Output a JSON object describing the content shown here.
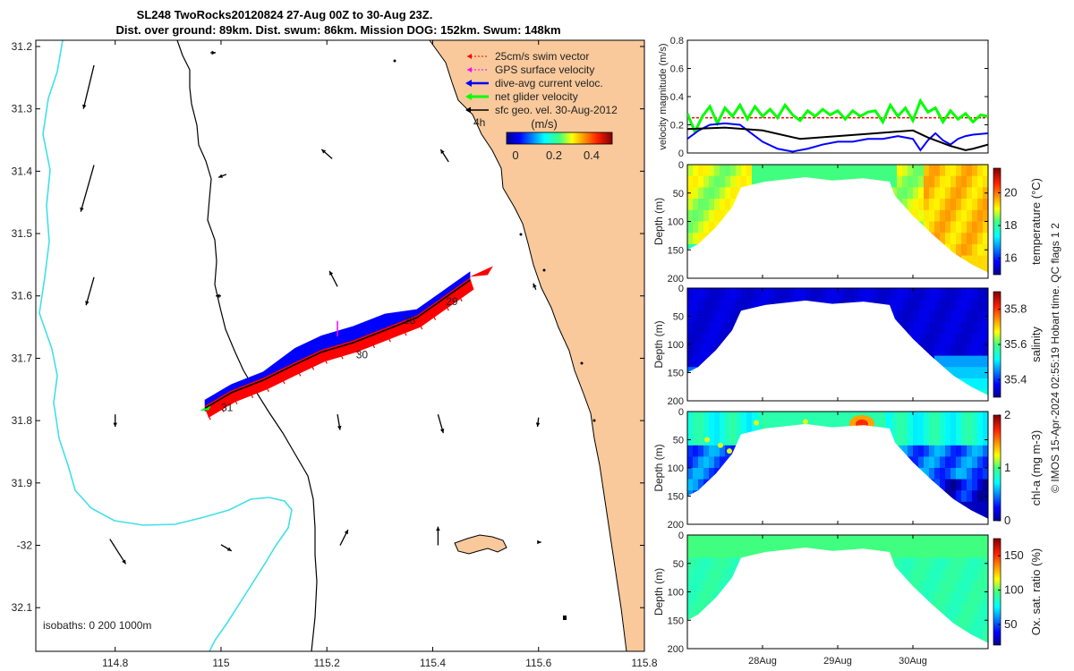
{
  "title": {
    "line1": "SL248 TwoRocks20120824 27-Aug 00Z to 30-Aug 23Z.",
    "line2": "Dist. over ground: 89km. Dist. swum: 86km. Mission DOG: 152km. Swum: 148km"
  },
  "credit": "© IMOS 15-Apr-2024 02:55:19 Hobart time. QC flags 1  2",
  "colors": {
    "land": "#f9c99b",
    "isobath_shallow": "#40e0e8",
    "isobath_deep": "#000000",
    "swim": "#ff0000",
    "gps": "#ff00ff",
    "dive_avg": "#0000ff",
    "net": "#00ff00",
    "geo": "#000000"
  },
  "chart_data": [
    {
      "type": "map",
      "id": "track-map",
      "xlim": [
        114.65,
        115.8
      ],
      "ylim": [
        -32.17,
        -31.19
      ],
      "x_ticks": [
        114.8,
        115,
        115.2,
        115.4,
        115.6,
        115.8
      ],
      "x_tick_labels": [
        "114.8",
        "115",
        "115.2",
        "115.4",
        "115.6",
        "115.8"
      ],
      "y_ticks": [
        -31.2,
        -31.3,
        -31.4,
        -31.5,
        -31.6,
        -31.7,
        -31.8,
        -31.9,
        -32,
        -32.1
      ],
      "y_tick_labels": [
        "31.2",
        "31.3",
        "31.4",
        "31.5",
        "31.6",
        "31.7",
        "31.8",
        "31.9",
        "-32",
        "32.1"
      ],
      "legend": [
        {
          "label": "25cm/s swim vector",
          "color": "#ff0000"
        },
        {
          "label": "GPS surface velocity",
          "color": "#ff00ff"
        },
        {
          "label": "dive-avg current veloc.",
          "color": "#0000ff"
        },
        {
          "label": "net glider velocity",
          "color": "#00ff00"
        },
        {
          "label": "sfc geo. vel. 30-Aug-2012",
          "color": "#000000"
        }
      ],
      "legend_placement": "top-right",
      "scale_label": "4h",
      "colorbar": {
        "label": "(m/s)",
        "ticks": [
          0,
          0.2,
          0.4
        ],
        "tick_labels": [
          "0",
          "0.2",
          "0.4"
        ],
        "range": [
          -0.03,
          0.5
        ]
      },
      "isobath_text": "isobaths: 0   200  1000m",
      "track": [
        {
          "lon": 114.97,
          "lat": -31.78
        },
        {
          "lon": 115.02,
          "lat": -31.755
        },
        {
          "lon": 115.08,
          "lat": -31.735
        },
        {
          "lon": 115.14,
          "lat": -31.71
        },
        {
          "lon": 115.19,
          "lat": -31.69
        },
        {
          "lon": 115.25,
          "lat": -31.675
        },
        {
          "lon": 115.31,
          "lat": -31.655
        },
        {
          "lon": 115.37,
          "lat": -31.635
        },
        {
          "lon": 115.42,
          "lat": -31.605
        },
        {
          "lon": 115.47,
          "lat": -31.575
        }
      ],
      "day_labels": [
        {
          "text": "31",
          "lon": 115.0,
          "lat": -31.785
        },
        {
          "text": "30",
          "lon": 115.255,
          "lat": -31.7
        },
        {
          "text": "28",
          "lon": 115.345,
          "lat": -31.645
        },
        {
          "text": "29",
          "lon": 115.425,
          "lat": -31.615
        }
      ],
      "geo_vectors": [
        {
          "lon": 114.76,
          "lat": -31.23,
          "dlon": -0.02,
          "dlat": -0.07
        },
        {
          "lon": 114.98,
          "lat": -31.21,
          "dlon": 0.01,
          "dlat": 0.0
        },
        {
          "lon": 114.76,
          "lat": -31.39,
          "dlon": -0.025,
          "dlat": -0.075
        },
        {
          "lon": 115.01,
          "lat": -31.405,
          "dlon": -0.015,
          "dlat": -0.005
        },
        {
          "lon": 115.21,
          "lat": -31.38,
          "dlon": -0.02,
          "dlat": 0.015
        },
        {
          "lon": 115.43,
          "lat": -31.385,
          "dlon": -0.015,
          "dlat": 0.02
        },
        {
          "lon": 114.76,
          "lat": -31.57,
          "dlon": -0.015,
          "dlat": -0.045
        },
        {
          "lon": 115.0,
          "lat": -31.6,
          "dlon": -0.01,
          "dlat": 0.0
        },
        {
          "lon": 115.22,
          "lat": -31.585,
          "dlon": -0.015,
          "dlat": 0.025
        },
        {
          "lon": 115.595,
          "lat": -31.59,
          "dlon": -0.005,
          "dlat": 0.01
        },
        {
          "lon": 114.8,
          "lat": -31.79,
          "dlon": 0.0,
          "dlat": -0.02
        },
        {
          "lon": 115.22,
          "lat": -31.79,
          "dlon": 0.005,
          "dlat": -0.025
        },
        {
          "lon": 115.41,
          "lat": -31.79,
          "dlon": 0.01,
          "dlat": -0.03
        },
        {
          "lon": 115.6,
          "lat": -31.795,
          "dlon": -0.002,
          "dlat": -0.015
        },
        {
          "lon": 114.79,
          "lat": -31.99,
          "dlon": 0.03,
          "dlat": -0.04
        },
        {
          "lon": 115.0,
          "lat": -31.999,
          "dlon": 0.02,
          "dlat": -0.01
        },
        {
          "lon": 115.225,
          "lat": -32.0,
          "dlon": 0.015,
          "dlat": 0.025
        },
        {
          "lon": 115.41,
          "lat": -32.0,
          "dlon": 0.0,
          "dlat": 0.03
        },
        {
          "lon": 115.6,
          "lat": -31.995,
          "dlon": 0.005,
          "dlat": 0.0
        }
      ]
    },
    {
      "type": "line",
      "id": "velocity",
      "ylabel": "velocity magnitude (m/s)",
      "xlim": [
        0,
        4
      ],
      "ylim": [
        0,
        0.8
      ],
      "y_ticks": [
        0,
        0.2,
        0.4,
        0.6,
        0.8
      ],
      "y_tick_labels": [
        "0",
        "0.2",
        "0.4",
        "0.6",
        "0.8"
      ],
      "series": [
        {
          "name": "swim",
          "color": "#ff0000",
          "style": "dashed",
          "x": [
            0,
            4
          ],
          "y": [
            0.25,
            0.25
          ]
        },
        {
          "name": "net glider velocity",
          "color": "#00ff00",
          "x": [
            0,
            0.1,
            0.2,
            0.3,
            0.4,
            0.5,
            0.6,
            0.7,
            0.8,
            0.9,
            1.0,
            1.1,
            1.2,
            1.3,
            1.4,
            1.5,
            1.6,
            1.7,
            1.8,
            1.9,
            2.0,
            2.1,
            2.2,
            2.3,
            2.4,
            2.5,
            2.6,
            2.7,
            2.8,
            2.9,
            3.0,
            3.1,
            3.2,
            3.3,
            3.4,
            3.5,
            3.6,
            3.7,
            3.8,
            3.9,
            4.0
          ],
          "y": [
            0.28,
            0.15,
            0.26,
            0.33,
            0.21,
            0.32,
            0.26,
            0.34,
            0.24,
            0.33,
            0.26,
            0.31,
            0.25,
            0.34,
            0.27,
            0.23,
            0.3,
            0.26,
            0.31,
            0.27,
            0.3,
            0.24,
            0.3,
            0.26,
            0.29,
            0.3,
            0.22,
            0.34,
            0.26,
            0.32,
            0.23,
            0.37,
            0.29,
            0.32,
            0.22,
            0.3,
            0.24,
            0.28,
            0.22,
            0.27,
            0.26
          ]
        },
        {
          "name": "dive-avg current",
          "color": "#0000ff",
          "x": [
            0,
            0.15,
            0.3,
            0.5,
            0.7,
            0.85,
            1.0,
            1.2,
            1.4,
            1.6,
            1.8,
            2.0,
            2.2,
            2.4,
            2.6,
            2.8,
            3.0,
            3.1,
            3.2,
            3.3,
            3.4,
            3.5,
            3.6,
            3.7,
            3.8,
            4.0
          ],
          "y": [
            0.1,
            0.16,
            0.2,
            0.21,
            0.2,
            0.14,
            0.08,
            0.03,
            0.01,
            0.03,
            0.06,
            0.08,
            0.08,
            0.1,
            0.1,
            0.12,
            0.1,
            0.02,
            0.09,
            0.14,
            0.09,
            0.06,
            0.1,
            0.12,
            0.13,
            0.14
          ]
        },
        {
          "name": "sfc geo. vel.",
          "color": "#000000",
          "x": [
            0,
            0.5,
            1.0,
            1.5,
            2.0,
            2.5,
            3.0,
            3.2,
            3.5,
            3.7,
            3.8,
            4.0
          ],
          "y": [
            0.17,
            0.18,
            0.16,
            0.1,
            0.12,
            0.14,
            0.16,
            0.11,
            0.05,
            0.02,
            0.03,
            0.06
          ]
        }
      ]
    },
    {
      "type": "heatmap",
      "id": "temperature",
      "ylabel": "Depth (m)",
      "cbar_label": "temperature (°C)",
      "cbar_ticks": [
        "16",
        "18",
        "20"
      ],
      "cbar_range": [
        15,
        21.5
      ],
      "y_ticks": [
        0,
        50,
        100,
        150,
        200
      ],
      "y_tick_labels": [
        "0",
        "50",
        "100",
        "150",
        "200"
      ]
    },
    {
      "type": "heatmap",
      "id": "salinity",
      "ylabel": "Depth (m)",
      "cbar_label": "salinity",
      "cbar_ticks": [
        "35.4",
        "35.6",
        "35.8"
      ],
      "cbar_range": [
        35.3,
        35.9
      ],
      "y_ticks": [
        0,
        50,
        100,
        150,
        200
      ],
      "y_tick_labels": [
        "0",
        "50",
        "100",
        "150",
        "200"
      ]
    },
    {
      "type": "heatmap",
      "id": "chla",
      "ylabel": "Depth (m)",
      "cbar_label": "chl-a (mg m-3)",
      "cbar_ticks": [
        "0",
        "1",
        "2"
      ],
      "cbar_range": [
        0,
        2
      ],
      "y_ticks": [
        0,
        50,
        100,
        150,
        200
      ],
      "y_tick_labels": [
        "0",
        "50",
        "100",
        "150",
        "200"
      ]
    },
    {
      "type": "heatmap",
      "id": "oxygen",
      "ylabel": "Depth (m)",
      "cbar_label": "Ox. sat. ratio (%)",
      "cbar_ticks": [
        "50",
        "100",
        "150"
      ],
      "cbar_range": [
        20,
        175
      ],
      "y_ticks": [
        0,
        50,
        100,
        150,
        200
      ],
      "y_tick_labels": [
        "0",
        "50",
        "100",
        "150",
        "200"
      ],
      "x_tick_labels": [
        "28Aug",
        "29Aug",
        "30Aug"
      ],
      "x_ticks": [
        1,
        2,
        3
      ]
    }
  ]
}
